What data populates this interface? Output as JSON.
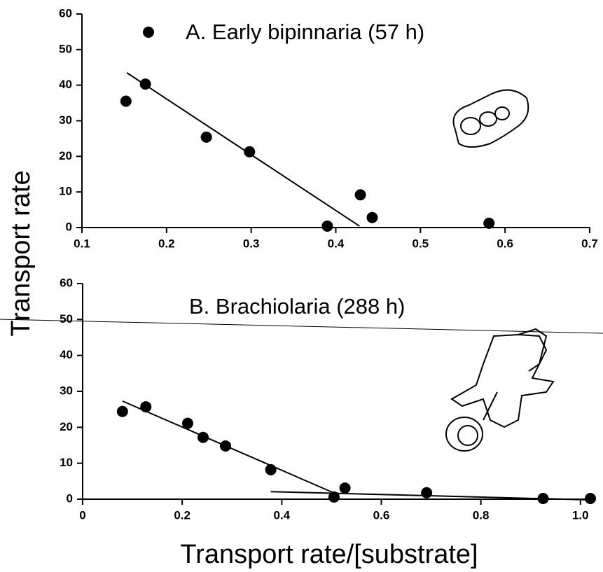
{
  "chart_data": [
    {
      "type": "scatter",
      "title": "A. Early bipinnaria (57 h)",
      "color": "#000000",
      "x": [
        0.152,
        0.175,
        0.247,
        0.298,
        0.39,
        0.429,
        0.443,
        0.581
      ],
      "values": [
        35.5,
        40.3,
        25.4,
        21.3,
        0.4,
        9.2,
        2.8,
        1.2
      ],
      "fit_lines": [
        {
          "x": [
            0.153,
            0.428
          ],
          "values": [
            43.5,
            0.4
          ]
        }
      ],
      "xlim": [
        0.1,
        0.7
      ],
      "ylim": [
        0,
        60
      ],
      "xticks": [
        0.1,
        0.2,
        0.3,
        0.4,
        0.5,
        0.6,
        0.7
      ],
      "yticks": [
        0,
        10,
        20,
        30,
        40,
        50,
        60
      ]
    },
    {
      "type": "scatter",
      "title": "B. Brachiolaria (288 h)",
      "color": "#000000",
      "x": [
        0.08,
        0.127,
        0.211,
        0.242,
        0.287,
        0.378,
        0.505,
        0.527,
        0.691,
        0.925,
        1.02
      ],
      "values": [
        24.4,
        25.7,
        21.1,
        17.2,
        14.8,
        8.2,
        0.6,
        3.1,
        1.8,
        0.2,
        0.2
      ],
      "fit_lines": [
        {
          "x": [
            0.08,
            0.502
          ],
          "values": [
            27.3,
            1.9
          ]
        },
        {
          "x": [
            0.378,
            1.02
          ],
          "values": [
            2.1,
            -0.2
          ]
        }
      ],
      "xlim": [
        0,
        1.02
      ],
      "ylim": [
        0,
        60
      ],
      "xticks": [
        0,
        0.2,
        0.4,
        0.6,
        0.8,
        {
          "value": 1,
          "label": "1.0"
        }
      ],
      "yticks": [
        0,
        10,
        20,
        30,
        40,
        50,
        60
      ]
    }
  ],
  "y_axis_label": "Transport rate",
  "x_axis_label": "Transport rate/[substrate]"
}
